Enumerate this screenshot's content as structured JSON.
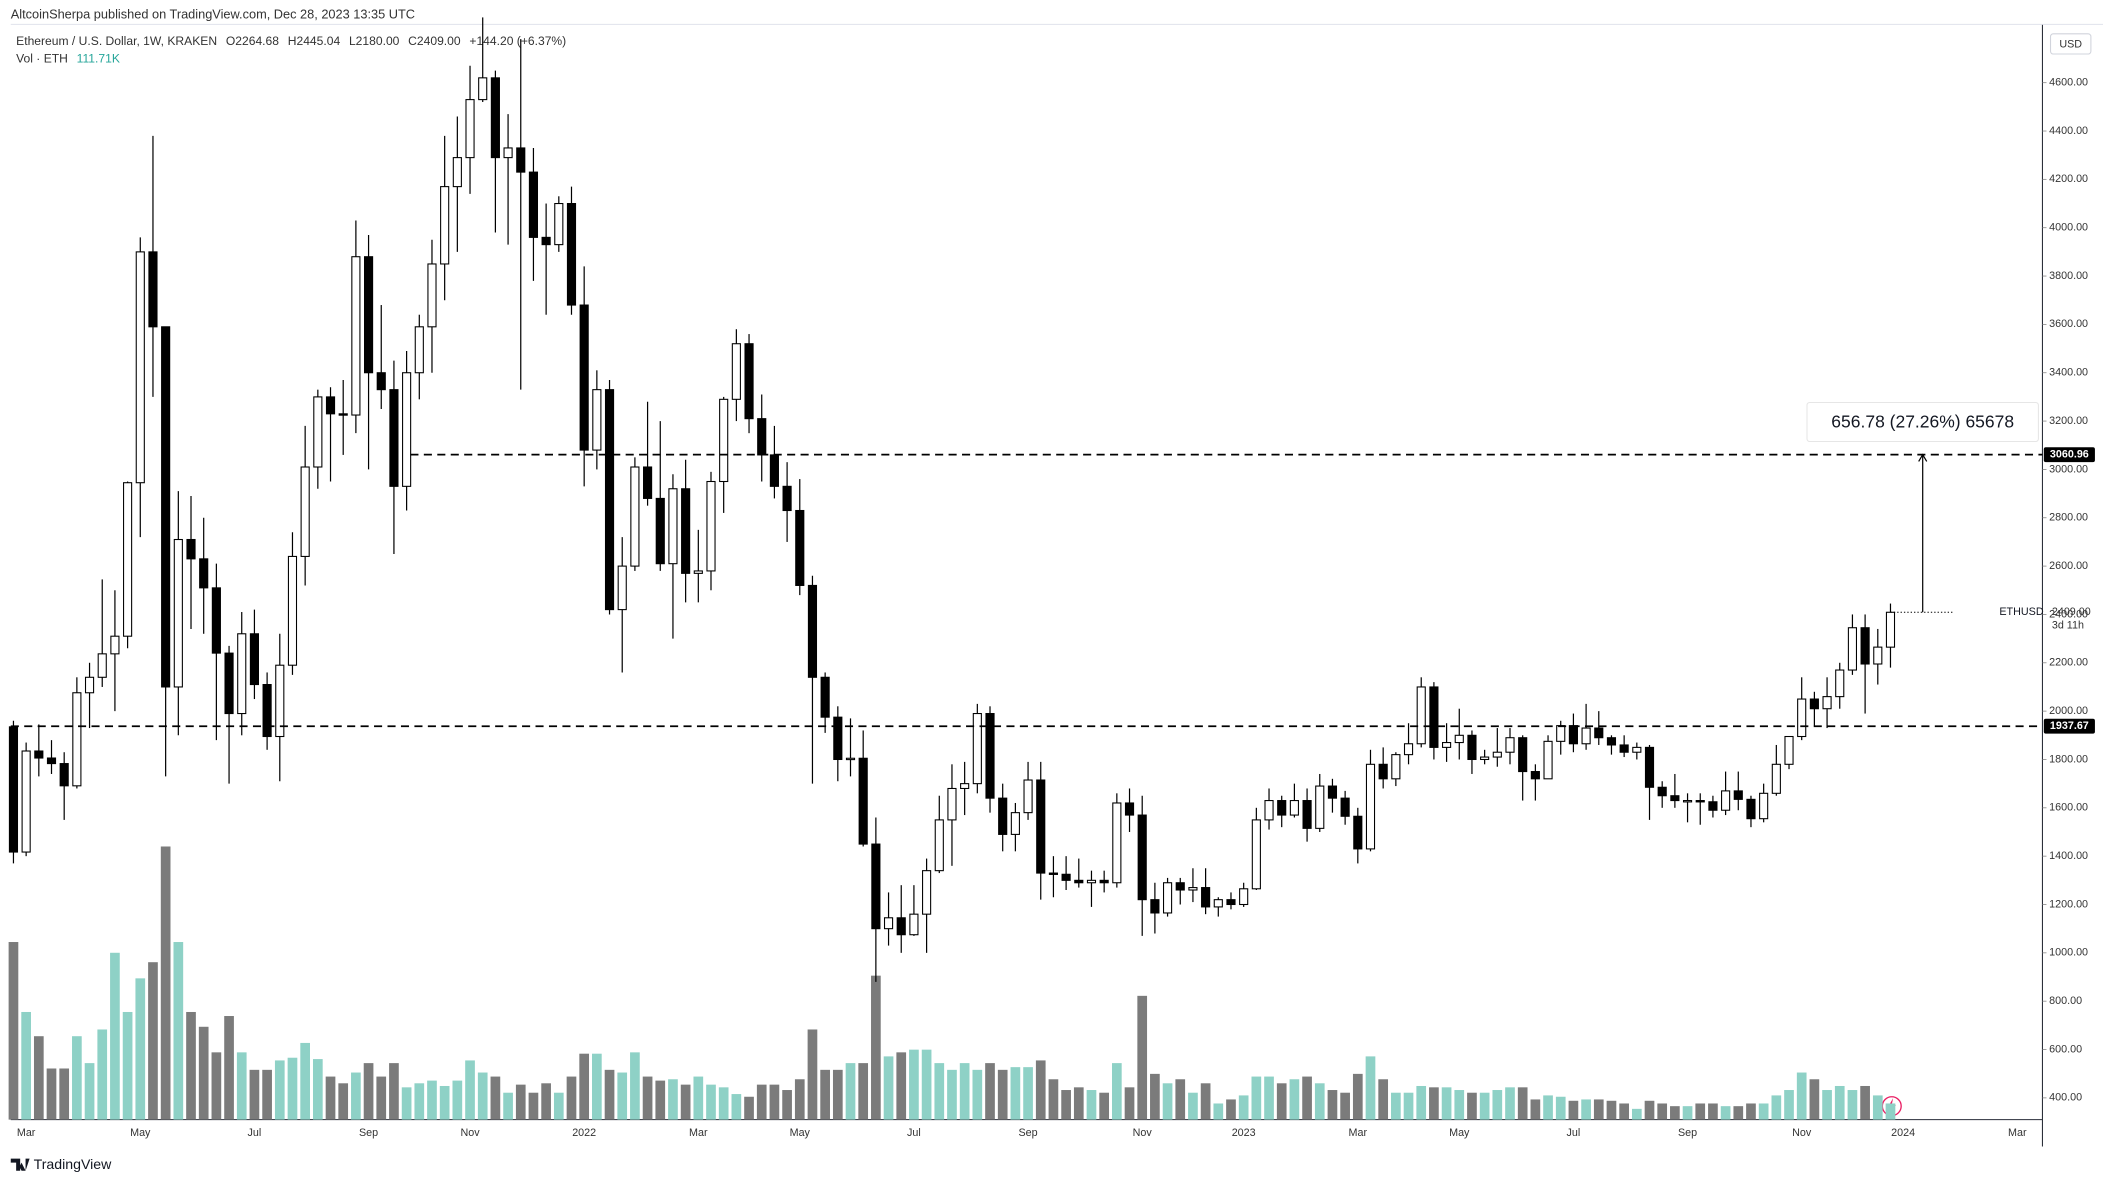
{
  "header": "AltcoinSherpa published on TradingView.com, Dec 28, 2023 13:35 UTC",
  "footer": "TradingView",
  "chart_data": {
    "type": "candlestick",
    "title": "Ethereum / U.S. Dollar, 1W, KRAKEN",
    "ohlc_labels": [
      "O2264.68",
      "H2445.04",
      "L2180.00",
      "C2409.00"
    ],
    "change_label": "+144.20 (+6.37%)",
    "volume_name": "Vol · ETH",
    "volume_last_label": "111.71K",
    "currency": "USD",
    "symbol": "ETHUSD",
    "countdown": "3d 11h",
    "last_price": {
      "value": 2409,
      "label": "2409.00"
    },
    "levels": [
      3060.96,
      1937.67
    ],
    "measure_label": "656.78 (27.26%) 65678",
    "colors": {
      "up": "#ffffff",
      "down": "#000000",
      "outline": "#000000",
      "volume_up": "#8ed1c6",
      "volume_down": "#7b7b7b"
    },
    "ylim": [
      310,
      4830
    ],
    "yticks": [
      {
        "value": 400,
        "label": "400.00"
      },
      {
        "value": 600,
        "label": "600.00"
      },
      {
        "value": 800,
        "label": "800.00"
      },
      {
        "value": 1000,
        "label": "1000.00"
      },
      {
        "value": 1200,
        "label": "1200.00"
      },
      {
        "value": 1400,
        "label": "1400.00"
      },
      {
        "value": 1600,
        "label": "1600.00"
      },
      {
        "value": 1800,
        "label": "1800.00"
      },
      {
        "value": 2000,
        "label": "2000.00"
      },
      {
        "value": 2200,
        "label": "2200.00"
      },
      {
        "value": 2400,
        "label": "2400.00"
      },
      {
        "value": 2600,
        "label": "2600.00"
      },
      {
        "value": 2800,
        "label": "2800.00"
      },
      {
        "value": 3000,
        "label": "3000.00"
      },
      {
        "value": 3200,
        "label": "3200.00"
      },
      {
        "value": 3400,
        "label": "3400.00"
      },
      {
        "value": 3600,
        "label": "3600.00"
      },
      {
        "value": 3800,
        "label": "3800.00"
      },
      {
        "value": 4000,
        "label": "4000.00"
      },
      {
        "value": 4200,
        "label": "4200.00"
      },
      {
        "value": 4400,
        "label": "4400.00"
      },
      {
        "value": 4600,
        "label": "4600.00"
      }
    ],
    "categories": [
      null,
      "Mar",
      null,
      null,
      null,
      null,
      null,
      null,
      null,
      null,
      "May",
      null,
      null,
      null,
      null,
      null,
      null,
      null,
      null,
      "Jul",
      null,
      null,
      null,
      null,
      null,
      null,
      null,
      null,
      "Sep",
      null,
      null,
      null,
      null,
      null,
      null,
      null,
      "Nov",
      null,
      null,
      null,
      null,
      null,
      null,
      null,
      null,
      "2022",
      null,
      null,
      null,
      null,
      null,
      null,
      null,
      null,
      "Mar",
      null,
      null,
      null,
      null,
      null,
      null,
      null,
      "May",
      null,
      null,
      null,
      null,
      null,
      null,
      null,
      null,
      "Jul",
      null,
      null,
      null,
      null,
      null,
      null,
      null,
      null,
      "Sep",
      null,
      null,
      null,
      null,
      null,
      null,
      null,
      null,
      "Nov",
      null,
      null,
      null,
      null,
      null,
      null,
      null,
      "2023",
      null,
      null,
      null,
      null,
      null,
      null,
      null,
      null,
      "Mar",
      null,
      null,
      null,
      null,
      null,
      null,
      null,
      "May",
      null,
      null,
      null,
      null,
      null,
      null,
      null,
      null,
      "Jul",
      null,
      null,
      null,
      null,
      null,
      null,
      null,
      null,
      "Sep",
      null,
      null,
      null,
      null,
      null,
      null,
      null,
      null,
      "Nov",
      null,
      null,
      null,
      null,
      null,
      null,
      null,
      "2024",
      null,
      null,
      null,
      null,
      null,
      null,
      null,
      null,
      "Mar",
      null
    ],
    "open": [
      1935,
      1417,
      1835,
      1806,
      1783,
      1691,
      2076,
      2140,
      2237,
      2310,
      2945,
      3900,
      3590,
      2100,
      2710,
      2630,
      2510,
      2240,
      1990,
      2320,
      2110,
      1895,
      2190,
      2640,
      3010,
      3300,
      3230,
      3225,
      3880,
      3400,
      3330,
      2930,
      3400,
      3590,
      3850,
      4170,
      4290,
      4530,
      4620,
      4290,
      4330,
      4230,
      3960,
      3930,
      4100,
      3680,
      3080,
      3330,
      2420,
      2600,
      3010,
      2880,
      2610,
      2920,
      2570,
      2580,
      2950,
      3290,
      3520,
      3210,
      3060,
      2930,
      2830,
      2520,
      2140,
      1975,
      1800,
      1805,
      1450,
      1100,
      1145,
      1075,
      1160,
      1340,
      1550,
      1680,
      1700,
      1990,
      1640,
      1490,
      1580,
      1715,
      1330,
      1325,
      1300,
      1290,
      1300,
      1290,
      1620,
      1570,
      1220,
      1165,
      1290,
      1260,
      1270,
      1190,
      1220,
      1200,
      1265,
      1550,
      1630,
      1570,
      1630,
      1515,
      1690,
      1640,
      1565,
      1430,
      1780,
      1720,
      1820,
      1865,
      2100,
      1850,
      1870,
      1900,
      1800,
      1810,
      1830,
      1890,
      1750,
      1720,
      1875,
      1940,
      1865,
      1930,
      1890,
      1860,
      1830,
      1850,
      1685,
      1650,
      1630,
      1630,
      1625,
      1590,
      1670,
      1635,
      1555,
      1660,
      1780,
      1895,
      2050,
      2010,
      2060,
      2170,
      2345,
      2195,
      2264.68,
      null,
      null,
      null,
      null,
      null,
      null,
      null,
      null,
      null,
      null,
      null
    ],
    "high": [
      1960,
      1870,
      1945,
      1880,
      1830,
      2140,
      2200,
      2545,
      2500,
      2950,
      3960,
      4380,
      3590,
      2910,
      2890,
      2800,
      2610,
      2270,
      2410,
      2420,
      2160,
      2320,
      2740,
      3180,
      3330,
      3340,
      3370,
      4030,
      3970,
      3680,
      3450,
      3490,
      3640,
      3950,
      4380,
      4460,
      4670,
      4870,
      4650,
      4470,
      4780,
      4330,
      4100,
      4130,
      4170,
      3840,
      3410,
      3370,
      2720,
      3050,
      3280,
      3200,
      2980,
      3040,
      2750,
      2990,
      3300,
      3580,
      3560,
      3310,
      3180,
      3030,
      2960,
      2560,
      2160,
      2020,
      1970,
      1920,
      1560,
      1250,
      1280,
      1280,
      1390,
      1650,
      1780,
      1790,
      2030,
      2020,
      1700,
      1620,
      1790,
      1790,
      1400,
      1400,
      1390,
      1340,
      1340,
      1660,
      1680,
      1650,
      1290,
      1310,
      1310,
      1350,
      1350,
      1230,
      1250,
      1290,
      1600,
      1680,
      1650,
      1700,
      1680,
      1740,
      1720,
      1670,
      1600,
      1840,
      1850,
      1830,
      1950,
      2140,
      2120,
      1950,
      2010,
      1920,
      1840,
      1930,
      1930,
      1900,
      1780,
      1900,
      1960,
      1990,
      2030,
      2000,
      1900,
      1900,
      1870,
      1860,
      1710,
      1740,
      1660,
      1660,
      1650,
      1750,
      1750,
      1650,
      1700,
      1860,
      1870,
      2140,
      2080,
      2140,
      2200,
      2400,
      2400,
      2340,
      2445.04,
      null,
      null,
      null,
      null,
      null,
      null,
      null,
      null,
      null,
      null,
      null
    ],
    "low": [
      1370,
      1400,
      1730,
      1740,
      1550,
      1680,
      1930,
      2100,
      2000,
      2260,
      2720,
      3300,
      1730,
      1900,
      2340,
      2320,
      1880,
      1700,
      1900,
      2050,
      1840,
      1710,
      2150,
      2520,
      2920,
      2950,
      3060,
      3150,
      3000,
      3250,
      2650,
      2830,
      3290,
      3400,
      3700,
      3900,
      4140,
      4520,
      3980,
      3930,
      3330,
      3780,
      3640,
      3900,
      3640,
      2930,
      3000,
      2400,
      2160,
      2580,
      2850,
      2580,
      2300,
      2450,
      2450,
      2500,
      2820,
      3200,
      3150,
      2950,
      2880,
      2700,
      2480,
      1700,
      1910,
      1710,
      1730,
      1440,
      880,
      1030,
      1000,
      1070,
      1000,
      1330,
      1360,
      1570,
      1660,
      1580,
      1420,
      1420,
      1550,
      1220,
      1230,
      1260,
      1270,
      1190,
      1250,
      1270,
      1500,
      1070,
      1080,
      1150,
      1200,
      1210,
      1160,
      1150,
      1180,
      1190,
      1260,
      1510,
      1520,
      1560,
      1460,
      1500,
      1580,
      1530,
      1370,
      1420,
      1680,
      1690,
      1780,
      1850,
      1800,
      1790,
      1800,
      1740,
      1780,
      1770,
      1780,
      1630,
      1630,
      1720,
      1820,
      1830,
      1840,
      1860,
      1820,
      1810,
      1800,
      1550,
      1600,
      1600,
      1540,
      1530,
      1560,
      1570,
      1590,
      1520,
      1540,
      1650,
      1760,
      1880,
      1940,
      1930,
      2010,
      2150,
      1990,
      2110,
      2180,
      null,
      null,
      null,
      null,
      null,
      null,
      null,
      null,
      null,
      null,
      null
    ],
    "close": [
      1417,
      1835,
      1806,
      1783,
      1691,
      2076,
      2140,
      2237,
      2310,
      2945,
      3900,
      3590,
      2100,
      2710,
      2630,
      2510,
      2240,
      1990,
      2320,
      2110,
      1895,
      2190,
      2640,
      3010,
      3300,
      3230,
      3225,
      3880,
      3400,
      3330,
      2930,
      3400,
      3590,
      3850,
      4170,
      4290,
      4530,
      4620,
      4290,
      4330,
      4230,
      3960,
      3930,
      4100,
      3680,
      3080,
      3330,
      2420,
      2600,
      3010,
      2880,
      2610,
      2920,
      2570,
      2580,
      2950,
      3290,
      3520,
      3210,
      3060,
      2930,
      2830,
      2520,
      2140,
      1975,
      1800,
      1805,
      1450,
      1100,
      1145,
      1075,
      1160,
      1340,
      1550,
      1680,
      1700,
      1990,
      1640,
      1490,
      1580,
      1715,
      1330,
      1325,
      1300,
      1290,
      1300,
      1290,
      1620,
      1570,
      1220,
      1165,
      1290,
      1260,
      1270,
      1190,
      1220,
      1200,
      1265,
      1550,
      1630,
      1570,
      1630,
      1515,
      1690,
      1640,
      1565,
      1430,
      1780,
      1720,
      1820,
      1865,
      2100,
      1850,
      1870,
      1900,
      1800,
      1810,
      1830,
      1890,
      1750,
      1720,
      1875,
      1940,
      1865,
      1930,
      1890,
      1860,
      1830,
      1850,
      1685,
      1650,
      1630,
      1630,
      1625,
      1590,
      1670,
      1635,
      1555,
      1660,
      1780,
      1895,
      2050,
      2010,
      2060,
      2170,
      2345,
      2195,
      2264.8,
      2409,
      null,
      null,
      null,
      null,
      null,
      null,
      null,
      null,
      null,
      null,
      null
    ],
    "volume": [
      1227600,
      744000,
      576600,
      353400,
      353400,
      576600,
      390600,
      623100,
      1153200,
      744000,
      976500,
      1088100,
      1887900,
      1227600,
      744000,
      641700,
      465000,
      716100,
      465000,
      344100,
      344100,
      409200,
      427800,
      530100,
      418500,
      297600,
      251100,
      325500,
      390600,
      297600,
      390600,
      223200,
      251100,
      269700,
      232500,
      269700,
      409200,
      325500,
      297600,
      186000,
      241800,
      186000,
      251100,
      186000,
      297600,
      455700,
      455700,
      344100,
      325500,
      465000,
      297600,
      269700,
      279000,
      241800,
      297600,
      241800,
      223200,
      176700,
      158100,
      241800,
      241800,
      204600,
      279000,
      623100,
      344100,
      344100,
      390600,
      390600,
      995100,
      437100,
      465000,
      483600,
      483600,
      390600,
      344100,
      390600,
      344100,
      390600,
      344100,
      362700,
      362700,
      409200,
      279000,
      204600,
      223200,
      204600,
      186000,
      390600,
      223200,
      855600,
      316200,
      251100,
      279000,
      186000,
      251100,
      111600,
      139500,
      167400,
      297600,
      297600,
      251100,
      279000,
      297600,
      251100,
      204600,
      186000,
      316200,
      437100,
      279000,
      186000,
      186000,
      232500,
      223200,
      223200,
      204600,
      186000,
      186000,
      204600,
      223200,
      223200,
      139500,
      167400,
      158100,
      130200,
      139500,
      139500,
      130200,
      111600,
      74400,
      130200,
      111600,
      93000,
      93000,
      111600,
      111600,
      93000,
      93000,
      111600,
      111600,
      167400,
      204600,
      325500,
      279000,
      204600,
      232500,
      204600,
      232500,
      167400,
      111710,
      null,
      null,
      null,
      null,
      null,
      null,
      null,
      null,
      null,
      null,
      null
    ]
  }
}
